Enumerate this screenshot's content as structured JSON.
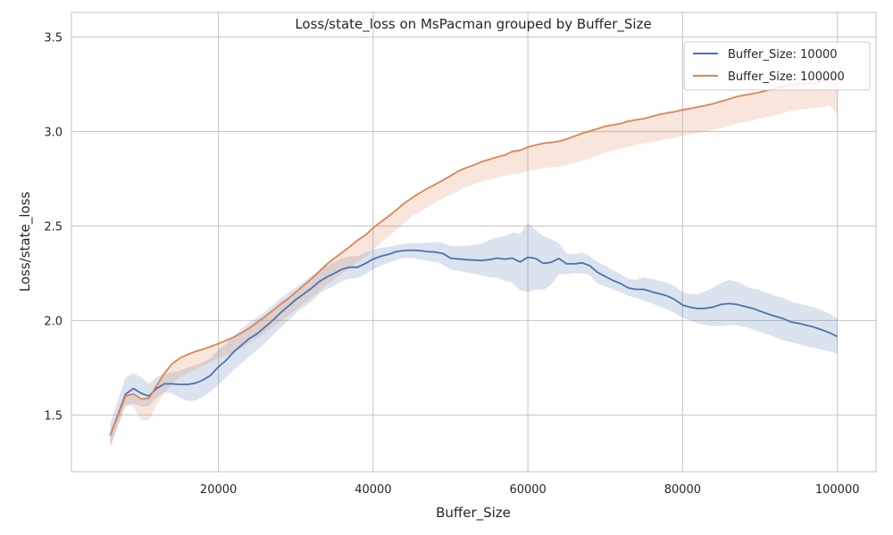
{
  "chart_data": {
    "type": "line",
    "title": "Loss/state_loss on MsPacman grouped by Buffer_Size",
    "xlabel": "Buffer_Size",
    "ylabel": "Loss/state_loss",
    "xlim": [
      1000,
      105000
    ],
    "ylim": [
      1.2,
      3.63
    ],
    "xticks": [
      20000,
      40000,
      60000,
      80000,
      100000
    ],
    "yticks": [
      1.5,
      2.0,
      2.5,
      3.0,
      3.5
    ],
    "xtick_labels": [
      "20000",
      "40000",
      "60000",
      "80000",
      "100000"
    ],
    "ytick_labels": [
      "1.5",
      "2.0",
      "2.5",
      "3.0",
      "3.5"
    ],
    "grid": true,
    "legend_position": "top-right",
    "series": [
      {
        "name": "Buffer_Size: 10000",
        "color": "#4c72b0",
        "band_color": "#4c72b0",
        "x": [
          6000,
          8000,
          9000,
          10000,
          11000,
          12000,
          13000,
          14000,
          15000,
          16000,
          17000,
          18000,
          19000,
          20000,
          21000,
          22000,
          23000,
          24000,
          25000,
          26000,
          27000,
          28000,
          29000,
          30000,
          31000,
          32000,
          33000,
          34000,
          35000,
          36000,
          37000,
          38000,
          39000,
          40000,
          41000,
          42000,
          43000,
          44000,
          45000,
          46000,
          47000,
          48000,
          49000,
          50000,
          52000,
          54000,
          55000,
          56000,
          57000,
          58000,
          59000,
          60000,
          61000,
          62000,
          63000,
          64000,
          65000,
          66000,
          67000,
          68000,
          69000,
          70000,
          71000,
          72000,
          73000,
          74000,
          75000,
          76000,
          77000,
          78000,
          79000,
          80000,
          81000,
          82000,
          83000,
          84000,
          85000,
          86000,
          87000,
          88000,
          89000,
          90000,
          91000,
          92000,
          93000,
          94000,
          95000,
          96000,
          97000,
          98000,
          99000,
          100000
        ],
        "y": [
          1.39,
          1.61,
          1.64,
          1.615,
          1.6,
          1.64,
          1.665,
          1.665,
          1.662,
          1.662,
          1.668,
          1.685,
          1.71,
          1.755,
          1.79,
          1.835,
          1.87,
          1.905,
          1.93,
          1.965,
          2.0,
          2.04,
          2.075,
          2.11,
          2.14,
          2.17,
          2.205,
          2.23,
          2.25,
          2.272,
          2.282,
          2.282,
          2.302,
          2.325,
          2.34,
          2.35,
          2.365,
          2.37,
          2.372,
          2.37,
          2.365,
          2.362,
          2.355,
          2.33,
          2.322,
          2.318,
          2.322,
          2.33,
          2.325,
          2.33,
          2.31,
          2.335,
          2.328,
          2.302,
          2.308,
          2.328,
          2.3,
          2.3,
          2.305,
          2.29,
          2.255,
          2.233,
          2.212,
          2.195,
          2.172,
          2.165,
          2.165,
          2.152,
          2.142,
          2.13,
          2.11,
          2.082,
          2.07,
          2.063,
          2.065,
          2.072,
          2.085,
          2.09,
          2.085,
          2.075,
          2.065,
          2.05,
          2.035,
          2.022,
          2.01,
          1.992,
          1.985,
          1.975,
          1.965,
          1.95,
          1.935,
          1.915
        ],
        "lower": [
          1.33,
          1.55,
          1.56,
          1.545,
          1.545,
          1.59,
          1.62,
          1.615,
          1.59,
          1.575,
          1.575,
          1.595,
          1.625,
          1.66,
          1.7,
          1.74,
          1.775,
          1.81,
          1.845,
          1.88,
          1.92,
          1.96,
          2.0,
          2.04,
          2.07,
          2.1,
          2.14,
          2.165,
          2.185,
          2.21,
          2.222,
          2.225,
          2.245,
          2.27,
          2.29,
          2.305,
          2.32,
          2.33,
          2.33,
          2.325,
          2.315,
          2.31,
          2.295,
          2.27,
          2.255,
          2.24,
          2.23,
          2.225,
          2.21,
          2.2,
          2.16,
          2.15,
          2.165,
          2.16,
          2.19,
          2.245,
          2.245,
          2.25,
          2.25,
          2.24,
          2.195,
          2.18,
          2.165,
          2.15,
          2.13,
          2.12,
          2.105,
          2.09,
          2.075,
          2.06,
          2.04,
          2.015,
          2.0,
          1.985,
          1.975,
          1.97,
          1.97,
          1.975,
          1.975,
          1.965,
          1.955,
          1.94,
          1.925,
          1.91,
          1.895,
          1.885,
          1.875,
          1.865,
          1.855,
          1.845,
          1.835,
          1.825
        ],
        "upper": [
          1.45,
          1.7,
          1.72,
          1.7,
          1.665,
          1.7,
          1.72,
          1.725,
          1.735,
          1.75,
          1.765,
          1.78,
          1.8,
          1.845,
          1.875,
          1.92,
          1.955,
          1.99,
          2.015,
          2.045,
          2.08,
          2.115,
          2.145,
          2.175,
          2.205,
          2.235,
          2.265,
          2.29,
          2.31,
          2.33,
          2.34,
          2.34,
          2.36,
          2.375,
          2.385,
          2.39,
          2.4,
          2.405,
          2.41,
          2.41,
          2.412,
          2.415,
          2.412,
          2.395,
          2.395,
          2.405,
          2.425,
          2.44,
          2.448,
          2.465,
          2.46,
          2.515,
          2.48,
          2.445,
          2.43,
          2.41,
          2.355,
          2.35,
          2.36,
          2.34,
          2.31,
          2.29,
          2.265,
          2.245,
          2.22,
          2.215,
          2.23,
          2.22,
          2.21,
          2.2,
          2.18,
          2.15,
          2.14,
          2.14,
          2.155,
          2.175,
          2.2,
          2.215,
          2.205,
          2.185,
          2.17,
          2.16,
          2.145,
          2.13,
          2.12,
          2.1,
          2.09,
          2.08,
          2.07,
          2.055,
          2.035,
          2.01
        ]
      },
      {
        "name": "Buffer_Size: 100000",
        "color": "#dd8452",
        "band_color": "#dd8452",
        "x": [
          6000,
          8000,
          9000,
          10000,
          11000,
          12000,
          13000,
          14000,
          15000,
          16000,
          17000,
          18000,
          19000,
          20000,
          21000,
          22000,
          23000,
          24000,
          25000,
          26000,
          27000,
          28000,
          29000,
          30000,
          31000,
          32000,
          33000,
          34000,
          35000,
          36000,
          37000,
          38000,
          39000,
          40000,
          41000,
          42000,
          43000,
          44000,
          45000,
          46000,
          47000,
          48000,
          49000,
          50000,
          51000,
          52000,
          53000,
          54000,
          55000,
          56000,
          57000,
          58000,
          59000,
          60000,
          61000,
          62000,
          63000,
          64000,
          65000,
          66000,
          67000,
          68000,
          69000,
          70000,
          71000,
          72000,
          73000,
          74000,
          75000,
          76000,
          77000,
          78000,
          79000,
          80000,
          81000,
          82000,
          83000,
          84000,
          85000,
          86000,
          87000,
          88000,
          89000,
          90000,
          91000,
          92000,
          93000,
          94000,
          95000,
          96000,
          97000,
          98000,
          99000,
          100000
        ],
        "y": [
          1.39,
          1.6,
          1.612,
          1.585,
          1.588,
          1.655,
          1.72,
          1.77,
          1.8,
          1.82,
          1.835,
          1.848,
          1.862,
          1.878,
          1.895,
          1.912,
          1.935,
          1.96,
          1.99,
          2.02,
          2.052,
          2.085,
          2.115,
          2.15,
          2.185,
          2.22,
          2.258,
          2.298,
          2.33,
          2.36,
          2.392,
          2.425,
          2.452,
          2.49,
          2.522,
          2.552,
          2.585,
          2.62,
          2.648,
          2.675,
          2.698,
          2.72,
          2.742,
          2.765,
          2.79,
          2.808,
          2.822,
          2.84,
          2.852,
          2.865,
          2.875,
          2.895,
          2.9,
          2.918,
          2.928,
          2.938,
          2.942,
          2.948,
          2.96,
          2.975,
          2.99,
          3.002,
          3.015,
          3.028,
          3.035,
          3.042,
          3.055,
          3.062,
          3.068,
          3.08,
          3.09,
          3.098,
          3.105,
          3.115,
          3.122,
          3.13,
          3.138,
          3.148,
          3.16,
          3.172,
          3.185,
          3.192,
          3.2,
          3.208,
          3.218,
          3.228,
          3.24,
          3.248,
          3.252,
          3.255,
          3.258,
          3.265,
          3.28,
          3.3
        ],
        "lower": [
          1.33,
          1.55,
          1.545,
          1.47,
          1.475,
          1.55,
          1.62,
          1.665,
          1.7,
          1.72,
          1.74,
          1.76,
          1.78,
          1.8,
          1.815,
          1.835,
          1.855,
          1.88,
          1.905,
          1.935,
          1.965,
          1.995,
          2.025,
          2.055,
          2.09,
          2.12,
          2.155,
          2.19,
          2.22,
          2.25,
          2.28,
          2.31,
          2.335,
          2.375,
          2.41,
          2.445,
          2.48,
          2.515,
          2.55,
          2.575,
          2.6,
          2.625,
          2.645,
          2.665,
          2.685,
          2.705,
          2.72,
          2.735,
          2.745,
          2.755,
          2.765,
          2.775,
          2.78,
          2.79,
          2.798,
          2.805,
          2.81,
          2.815,
          2.822,
          2.835,
          2.845,
          2.86,
          2.875,
          2.89,
          2.9,
          2.91,
          2.92,
          2.93,
          2.935,
          2.945,
          2.952,
          2.96,
          2.968,
          2.975,
          2.985,
          2.992,
          3.0,
          3.01,
          3.02,
          3.03,
          3.042,
          3.05,
          3.058,
          3.068,
          3.078,
          3.088,
          3.098,
          3.108,
          3.115,
          3.12,
          3.125,
          3.13,
          3.14,
          3.09
        ]
      }
    ]
  }
}
